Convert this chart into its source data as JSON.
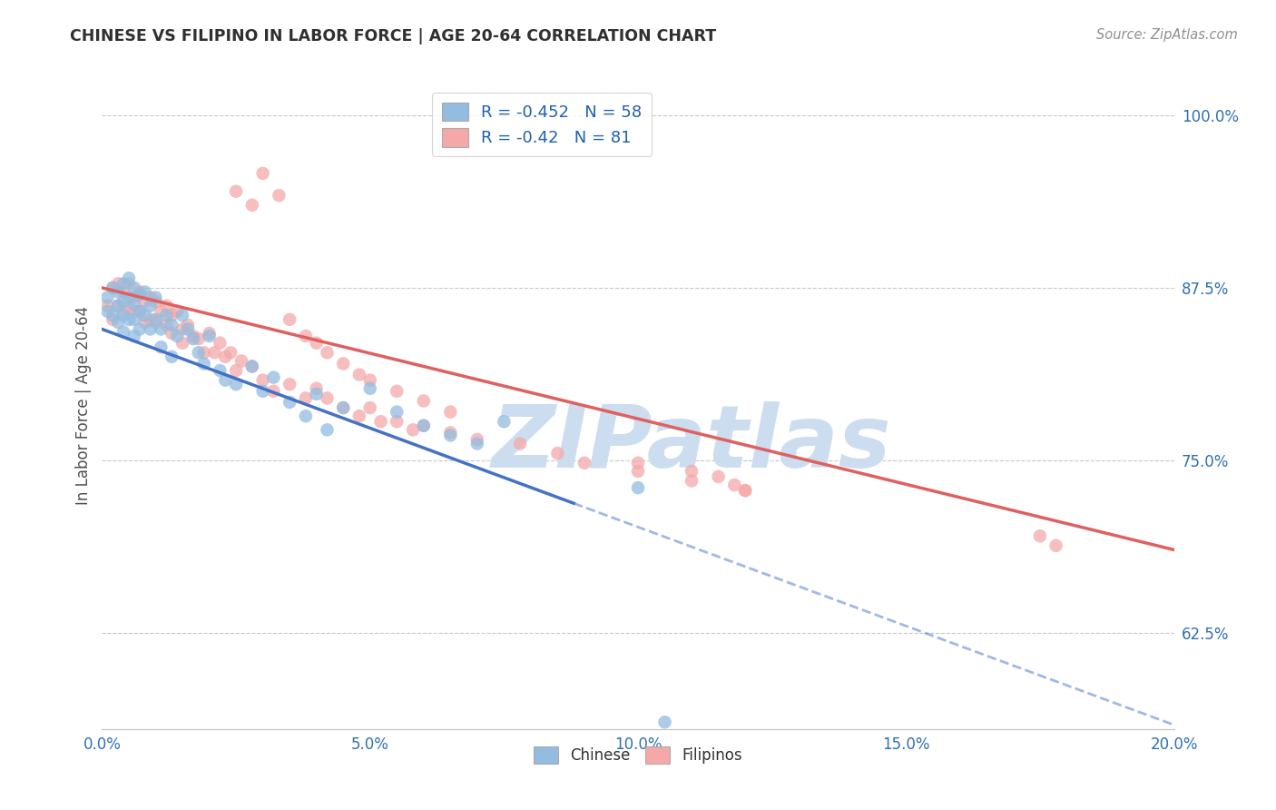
{
  "title": "CHINESE VS FILIPINO IN LABOR FORCE | AGE 20-64 CORRELATION CHART",
  "source": "Source: ZipAtlas.com",
  "xlabel_ticks": [
    "0.0%",
    "5.0%",
    "10.0%",
    "15.0%",
    "20.0%"
  ],
  "xlabel_vals": [
    0.0,
    0.05,
    0.1,
    0.15,
    0.2
  ],
  "ylabel_ticks": [
    "62.5%",
    "75.0%",
    "87.5%",
    "100.0%"
  ],
  "ylabel_vals": [
    0.625,
    0.75,
    0.875,
    1.0
  ],
  "ylabel_label": "In Labor Force | Age 20-64",
  "xlim": [
    0.0,
    0.2
  ],
  "ylim": [
    0.555,
    1.025
  ],
  "chinese_R": -0.452,
  "chinese_N": 58,
  "filipino_R": -0.42,
  "filipino_N": 81,
  "chinese_color": "#92bce0",
  "filipino_color": "#f4a9a8",
  "chinese_line_color": "#4472c4",
  "filipino_line_color": "#e06060",
  "watermark": "ZIPatlas",
  "watermark_color": "#ccddf0",
  "legend_label_chinese": "Chinese",
  "legend_label_filipino": "Filipinos",
  "chinese_line_x0": 0.0,
  "chinese_line_y0": 0.845,
  "chinese_line_x1": 0.2,
  "chinese_line_y1": 0.558,
  "chinese_line_solid_end": 0.088,
  "filipino_line_x0": 0.0,
  "filipino_line_y0": 0.875,
  "filipino_line_x1": 0.2,
  "filipino_line_y1": 0.685,
  "chinese_x": [
    0.001,
    0.001,
    0.002,
    0.002,
    0.003,
    0.003,
    0.003,
    0.004,
    0.004,
    0.004,
    0.004,
    0.005,
    0.005,
    0.005,
    0.006,
    0.006,
    0.006,
    0.006,
    0.007,
    0.007,
    0.007,
    0.008,
    0.008,
    0.009,
    0.009,
    0.01,
    0.01,
    0.011,
    0.011,
    0.012,
    0.013,
    0.013,
    0.014,
    0.015,
    0.016,
    0.017,
    0.018,
    0.019,
    0.02,
    0.022,
    0.023,
    0.025,
    0.028,
    0.03,
    0.032,
    0.035,
    0.038,
    0.04,
    0.042,
    0.045,
    0.05,
    0.055,
    0.06,
    0.065,
    0.07,
    0.075,
    0.1,
    0.105
  ],
  "chinese_y": [
    0.868,
    0.858,
    0.875,
    0.855,
    0.872,
    0.862,
    0.85,
    0.878,
    0.865,
    0.855,
    0.843,
    0.882,
    0.868,
    0.852,
    0.875,
    0.863,
    0.852,
    0.84,
    0.87,
    0.858,
    0.845,
    0.872,
    0.855,
    0.862,
    0.845,
    0.868,
    0.852,
    0.845,
    0.832,
    0.855,
    0.848,
    0.825,
    0.84,
    0.855,
    0.845,
    0.838,
    0.828,
    0.82,
    0.84,
    0.815,
    0.808,
    0.805,
    0.818,
    0.8,
    0.81,
    0.792,
    0.782,
    0.798,
    0.772,
    0.788,
    0.802,
    0.785,
    0.775,
    0.768,
    0.762,
    0.778,
    0.73,
    0.56
  ],
  "filipino_x": [
    0.001,
    0.002,
    0.002,
    0.003,
    0.003,
    0.004,
    0.004,
    0.005,
    0.005,
    0.006,
    0.006,
    0.007,
    0.007,
    0.008,
    0.008,
    0.009,
    0.009,
    0.01,
    0.01,
    0.011,
    0.012,
    0.012,
    0.013,
    0.013,
    0.014,
    0.015,
    0.015,
    0.016,
    0.017,
    0.018,
    0.019,
    0.02,
    0.021,
    0.022,
    0.023,
    0.024,
    0.025,
    0.026,
    0.028,
    0.03,
    0.032,
    0.035,
    0.038,
    0.04,
    0.042,
    0.045,
    0.048,
    0.05,
    0.052,
    0.055,
    0.058,
    0.06,
    0.065,
    0.07,
    0.078,
    0.085,
    0.09,
    0.1,
    0.11,
    0.12,
    0.025,
    0.028,
    0.03,
    0.033,
    0.035,
    0.038,
    0.04,
    0.042,
    0.045,
    0.048,
    0.05,
    0.055,
    0.06,
    0.065,
    0.1,
    0.11,
    0.115,
    0.118,
    0.12,
    0.175,
    0.178
  ],
  "filipino_y": [
    0.862,
    0.875,
    0.852,
    0.878,
    0.862,
    0.872,
    0.858,
    0.878,
    0.86,
    0.868,
    0.858,
    0.872,
    0.858,
    0.865,
    0.85,
    0.868,
    0.852,
    0.865,
    0.85,
    0.858,
    0.862,
    0.848,
    0.855,
    0.842,
    0.858,
    0.845,
    0.835,
    0.848,
    0.84,
    0.838,
    0.828,
    0.842,
    0.828,
    0.835,
    0.825,
    0.828,
    0.815,
    0.822,
    0.818,
    0.808,
    0.8,
    0.805,
    0.795,
    0.802,
    0.795,
    0.788,
    0.782,
    0.788,
    0.778,
    0.778,
    0.772,
    0.775,
    0.77,
    0.765,
    0.762,
    0.755,
    0.748,
    0.742,
    0.735,
    0.728,
    0.945,
    0.935,
    0.958,
    0.942,
    0.852,
    0.84,
    0.835,
    0.828,
    0.82,
    0.812,
    0.808,
    0.8,
    0.793,
    0.785,
    0.748,
    0.742,
    0.738,
    0.732,
    0.728,
    0.695,
    0.688
  ]
}
